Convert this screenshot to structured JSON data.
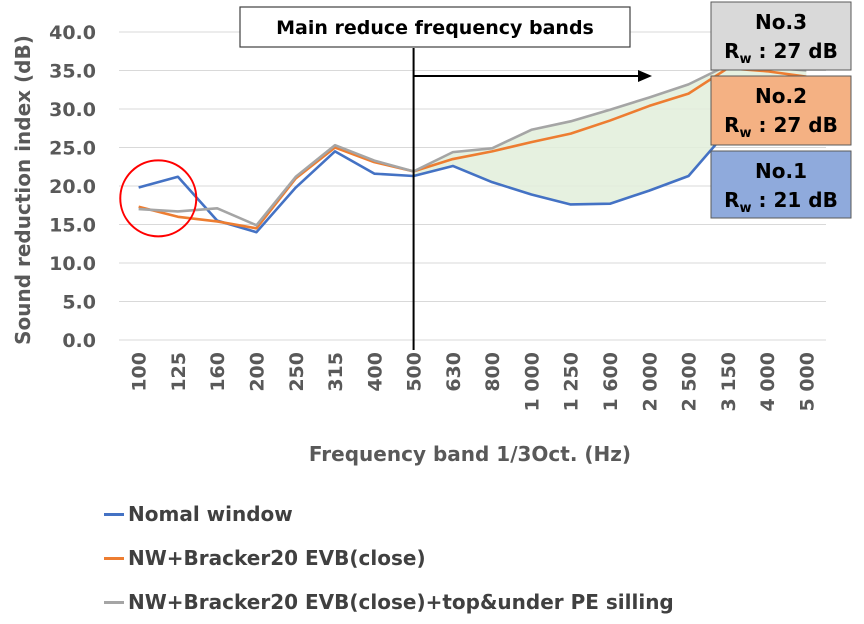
{
  "chart_data": {
    "type": "line",
    "title": "",
    "ylabel": "Sound reduction index (dB)",
    "xlabel": "Frequency band 1/3Oct. (Hz)",
    "ylim": [
      0,
      40
    ],
    "yticks": [
      "0.0",
      "5.0",
      "10.0",
      "15.0",
      "20.0",
      "25.0",
      "30.0",
      "35.0",
      "40.0"
    ],
    "grid": true,
    "legend_position": "bottom",
    "categories": [
      "100",
      "125",
      "160",
      "200",
      "250",
      "315",
      "400",
      "500",
      "630",
      "800",
      "1 000",
      "1 250",
      "1 600",
      "2 000",
      "2 500",
      "3 150",
      "4 000",
      "5 000"
    ],
    "series": [
      {
        "name": "Nomal window",
        "color": "#4472C4",
        "values": [
          19.8,
          21.2,
          15.5,
          14.0,
          19.8,
          24.5,
          21.6,
          21.3,
          22.6,
          20.5,
          18.9,
          17.6,
          17.7,
          19.4,
          21.3,
          27.2,
          26.9,
          25.6
        ]
      },
      {
        "name": "NW+Bracker20 EVB(close)",
        "color": "#ED7D31",
        "values": [
          17.3,
          16.0,
          15.4,
          14.5,
          21.0,
          25.0,
          23.1,
          21.9,
          23.5,
          24.5,
          25.7,
          26.8,
          28.5,
          30.4,
          32.0,
          35.3,
          34.9,
          34.2
        ]
      },
      {
        "name": "NW+Bracker20 EVB(close)+top&under PE silling",
        "color": "#A5A5A5",
        "values": [
          17.0,
          16.7,
          17.1,
          14.9,
          21.2,
          25.3,
          23.3,
          21.9,
          24.4,
          24.9,
          27.3,
          28.4,
          29.9,
          31.5,
          33.2,
          35.7,
          35.4,
          35.0
        ]
      }
    ],
    "annotations": {
      "band_label": "Main reduce frequency bands",
      "boxes": [
        {
          "number": "No.3",
          "rw": "27 dB",
          "color": "#D9D9D9"
        },
        {
          "number": "No.2",
          "rw": "27 dB",
          "color": "#F4B183"
        },
        {
          "number": "No.1",
          "rw": "21 dB",
          "color": "#8FAADC"
        }
      ],
      "rw_symbol": "R",
      "rw_subscript": "w",
      "rw_separator": " : "
    }
  }
}
